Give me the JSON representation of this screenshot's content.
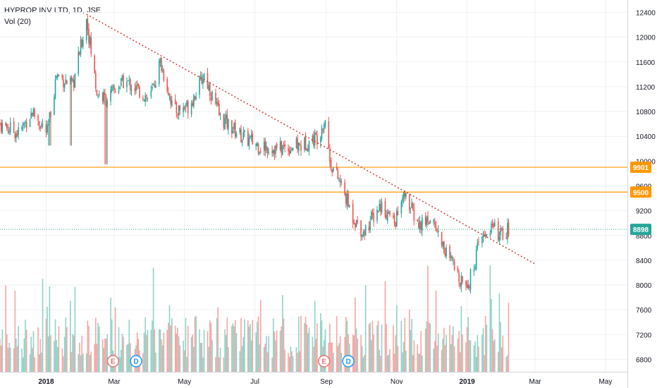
{
  "legend": {
    "title": "HYPROP INV LTD, 1D, JSE",
    "volume": "Vol (20)"
  },
  "colors": {
    "up": "#26a69a",
    "down": "#ef5350",
    "vol_up": "#8fd3c8",
    "vol_down": "#f7a6a4",
    "level": "#ff9800",
    "trend": "#d32f2f",
    "last": "#26a69a",
    "event": "#e57373",
    "dividend": "#2196f3"
  },
  "chart_data": {
    "type": "candlestick",
    "title": "HYPROP INV LTD, 1D, JSE",
    "y_ticks": [
      "12400",
      "12000",
      "11600",
      "11200",
      "10800",
      "10400",
      "10000",
      "9600",
      "9200",
      "8800",
      "8400",
      "8000",
      "7600",
      "7200",
      "6800"
    ],
    "y_ticks_v": [
      12400,
      12000,
      11600,
      11200,
      10800,
      10400,
      10000,
      9600,
      9200,
      8800,
      8400,
      8000,
      7600,
      7200,
      6800
    ],
    "x_ticks": [
      {
        "label": "2018",
        "date": "2018-01-01"
      },
      {
        "label": "Mar",
        "date": "2018-03-01"
      },
      {
        "label": "May",
        "date": "2018-05-01"
      },
      {
        "label": "Jul",
        "date": "2018-07-01"
      },
      {
        "label": "Sep",
        "date": "2018-09-01"
      },
      {
        "label": "Nov",
        "date": "2018-11-01"
      },
      {
        "label": "2019",
        "date": "2019-01-01"
      },
      {
        "label": "Mar",
        "date": "2019-03-01"
      },
      {
        "label": "May",
        "date": "2019-05-01"
      }
    ],
    "x_range": [
      "2017-11-22",
      "2019-05-20"
    ],
    "y_range": [
      6600,
      12600
    ],
    "horizontal_levels": [
      {
        "label": "9901",
        "value": 9901
      },
      {
        "label": "9500",
        "value": 9500
      }
    ],
    "last_price": {
      "label": "8898",
      "value": 8898
    },
    "trendline": {
      "start": {
        "date": "2018-02-05",
        "value": 12370
      },
      "end": {
        "date": "2019-03-01",
        "value": 8340
      }
    },
    "events": [
      {
        "label": "E",
        "date": "2018-02-28",
        "kind": "earnings"
      },
      {
        "label": "D",
        "date": "2018-03-20",
        "kind": "dividend"
      },
      {
        "label": "E",
        "date": "2018-08-30",
        "kind": "earnings"
      },
      {
        "label": "D",
        "date": "2018-09-20",
        "kind": "dividend"
      }
    ],
    "anchors": [
      [
        "2017-11-22",
        10600
      ],
      [
        "2017-12-08",
        10450
      ],
      [
        "2017-12-20",
        10800
      ],
      [
        "2018-01-02",
        10450
      ],
      [
        "2018-01-10",
        11400
      ],
      [
        "2018-01-24",
        11200
      ],
      [
        "2018-02-05",
        12300
      ],
      [
        "2018-02-14",
        11100
      ],
      [
        "2018-02-22",
        11000
      ],
      [
        "2018-03-10",
        11300
      ],
      [
        "2018-04-01",
        11000
      ],
      [
        "2018-04-10",
        11600
      ],
      [
        "2018-04-22",
        10800
      ],
      [
        "2018-05-05",
        10900
      ],
      [
        "2018-05-18",
        11400
      ],
      [
        "2018-06-01",
        10700
      ],
      [
        "2018-06-20",
        10400
      ],
      [
        "2018-07-05",
        10250
      ],
      [
        "2018-07-20",
        10200
      ],
      [
        "2018-08-10",
        10250
      ],
      [
        "2018-08-25",
        10400
      ],
      [
        "2018-08-31",
        10700
      ],
      [
        "2018-09-04",
        10000
      ],
      [
        "2018-09-14",
        9600
      ],
      [
        "2018-09-24",
        9100
      ],
      [
        "2018-10-03",
        8850
      ],
      [
        "2018-10-18",
        9300
      ],
      [
        "2018-10-30",
        9000
      ],
      [
        "2018-11-08",
        9450
      ],
      [
        "2018-11-20",
        8950
      ],
      [
        "2018-12-01",
        9100
      ],
      [
        "2018-12-12",
        8600
      ],
      [
        "2018-12-24",
        8150
      ],
      [
        "2019-01-03",
        8050
      ],
      [
        "2019-01-12",
        8700
      ],
      [
        "2019-01-22",
        8950
      ],
      [
        "2019-01-30",
        8800
      ],
      [
        "2019-02-06",
        8898
      ]
    ],
    "spikes": [
      {
        "date": "2018-02-22",
        "low": 9950
      },
      {
        "date": "2018-01-22",
        "low": 10250
      },
      {
        "date": "2018-01-04",
        "low": 10250
      }
    ],
    "volume_scale_max": 1.0
  }
}
